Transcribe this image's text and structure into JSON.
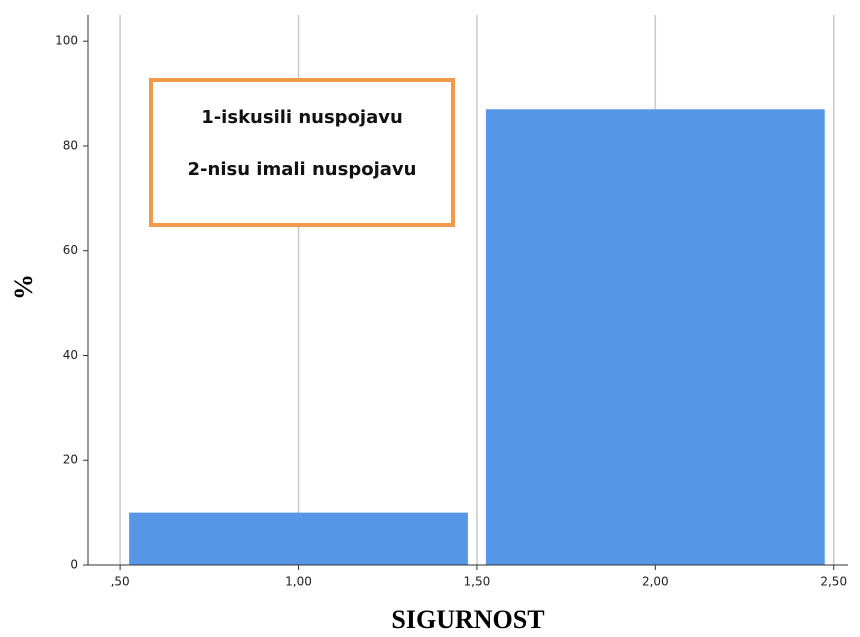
{
  "chart_data": {
    "type": "histogram",
    "bins": [
      0.5,
      1.5,
      2.5
    ],
    "values": [
      10,
      87
    ],
    "color": "#5596e6",
    "xlabel": "SIGURNOST",
    "ylabel": "%",
    "xlim": [
      0.41,
      2.54
    ],
    "ylim": [
      0,
      105
    ],
    "xticks": [
      {
        "value": 0.5,
        "label": ",50"
      },
      {
        "value": 1,
        "label": "1,00"
      },
      {
        "value": 1.5,
        "label": "1,50"
      },
      {
        "value": 2,
        "label": "2,00"
      },
      {
        "value": 2.5,
        "label": "2,50"
      }
    ],
    "yticks": [
      0,
      20,
      40,
      60,
      80,
      100
    ],
    "grid": "x",
    "annotations": [
      "1-iskusili nuspojavu",
      "2-nisu imali nuspojavu"
    ]
  }
}
